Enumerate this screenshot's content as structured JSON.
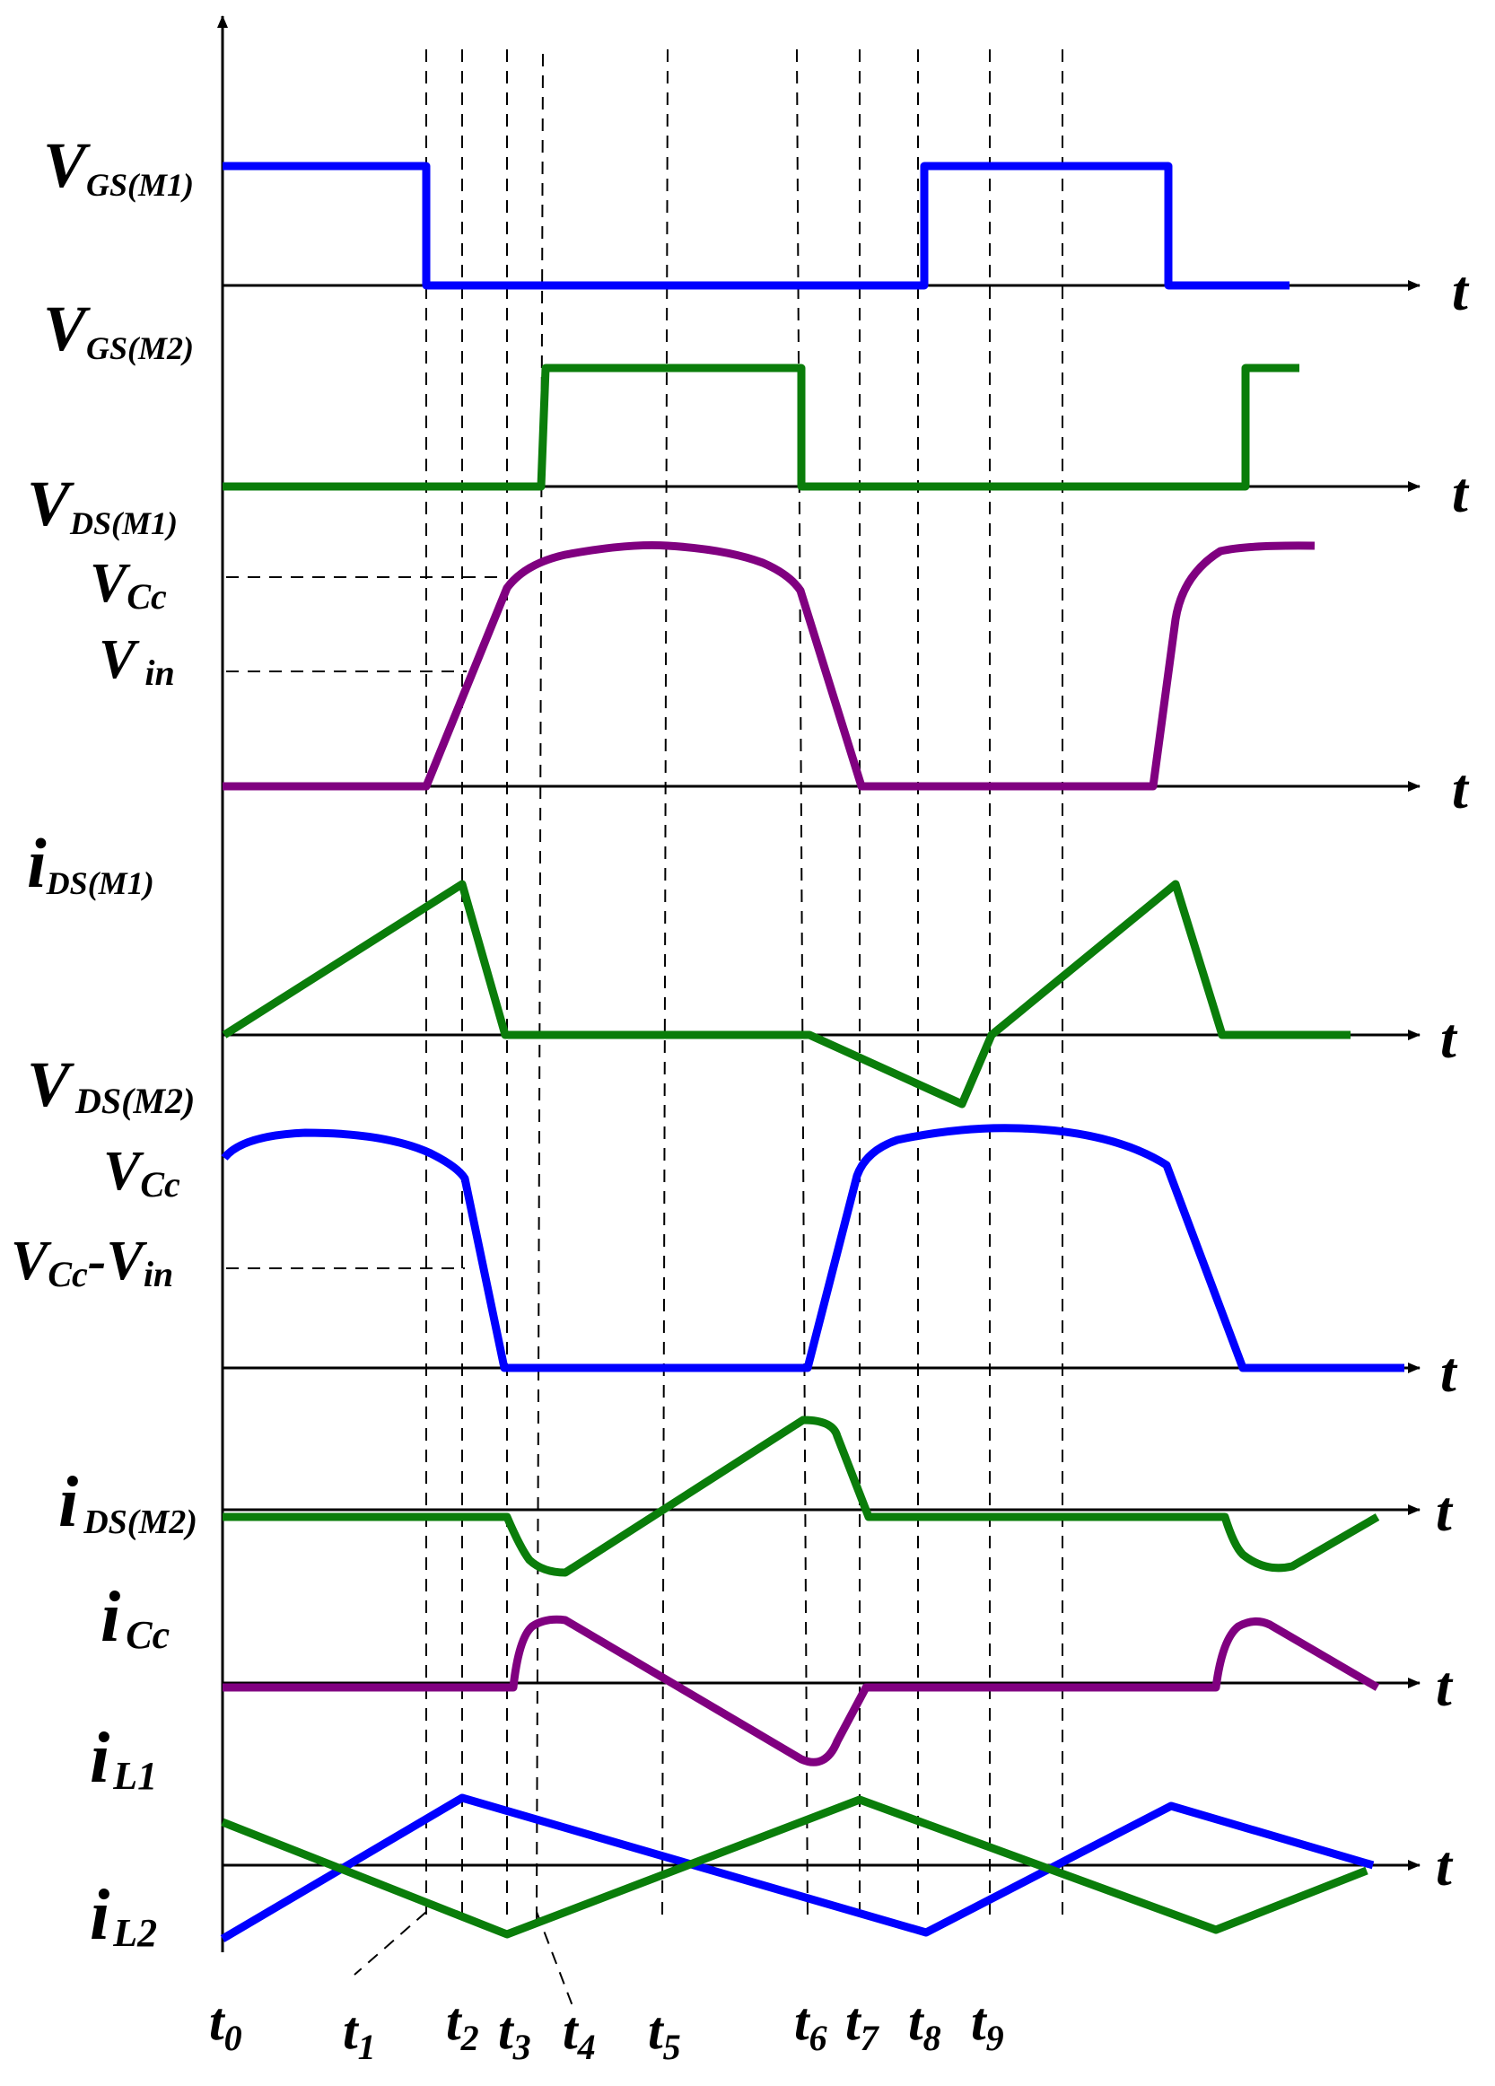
{
  "colors": {
    "blue": "#0000ff",
    "green": "#0a7d0a",
    "purple": "#800080",
    "black": "#000000"
  },
  "axis_symbol": "t",
  "signals": {
    "vgs_m1": {
      "sym": "V",
      "sub": "GS(M1)"
    },
    "vgs_m2": {
      "sym": "V",
      "sub": "GS(M2)"
    },
    "vds_m1": {
      "sym": "V",
      "sub": "DS(M1)"
    },
    "vcc_a": {
      "sym": "V",
      "sub": "Cc"
    },
    "vin": {
      "sym": "V",
      "sub": "in"
    },
    "ids_m1": {
      "sym": "i",
      "sub": "DS(M1)"
    },
    "vds_m2": {
      "sym": "V",
      "sub": "DS(M2)"
    },
    "vcc_b": {
      "sym": "V",
      "sub": "Cc"
    },
    "vcc_minus_vin": {
      "sym1": "V",
      "sub1": "Cc",
      "minus": "-",
      "sym2": "V",
      "sub2": "in"
    },
    "ids_m2": {
      "sym": "i",
      "sub": "DS(M2)"
    },
    "icc": {
      "sym": "i",
      "sub": "Cc"
    },
    "il1": {
      "sym": "i",
      "sub": "L1"
    },
    "il2": {
      "sym": "i",
      "sub": "L2"
    }
  },
  "time_marks": [
    {
      "sym": "t",
      "sub": "0"
    },
    {
      "sym": "t",
      "sub": "1"
    },
    {
      "sym": "t",
      "sub": "2"
    },
    {
      "sym": "t",
      "sub": "3"
    },
    {
      "sym": "t",
      "sub": "4"
    },
    {
      "sym": "t",
      "sub": "5"
    },
    {
      "sym": "t",
      "sub": "6"
    },
    {
      "sym": "t",
      "sub": "7"
    },
    {
      "sym": "t",
      "sub": "8"
    },
    {
      "sym": "t",
      "sub": "9"
    }
  ]
}
